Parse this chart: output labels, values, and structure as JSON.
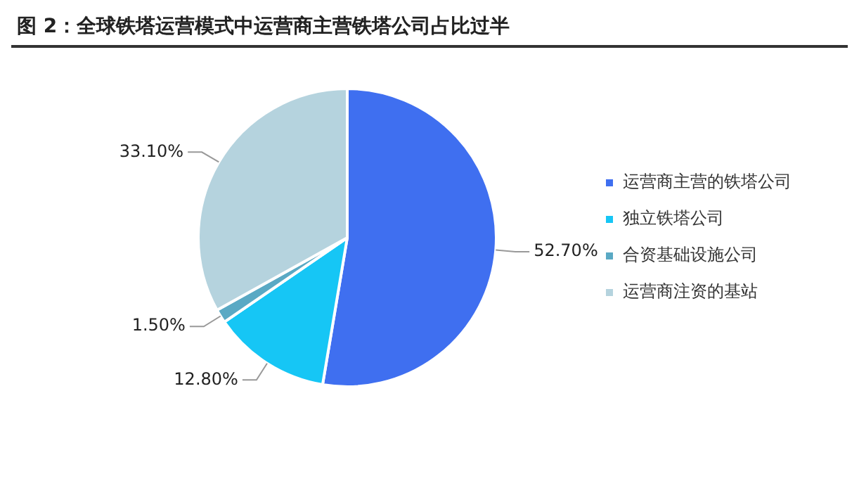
{
  "chart_data": {
    "type": "pie",
    "title": "图 2：全球铁塔运营模式中运营商主营铁塔公司占比过半",
    "categories": [
      "运营商主营的铁塔公司",
      "独立铁塔公司",
      "合资基础设施公司",
      "运营商注资的基站"
    ],
    "values": [
      52.7,
      12.8,
      1.5,
      33.1
    ],
    "colors": [
      "#3f6ff0",
      "#16c6f5",
      "#5aa9c4",
      "#b5d3de"
    ],
    "value_labels": [
      "52.70%",
      "12.80%",
      "1.50%",
      "33.10%"
    ],
    "legend": "right"
  }
}
